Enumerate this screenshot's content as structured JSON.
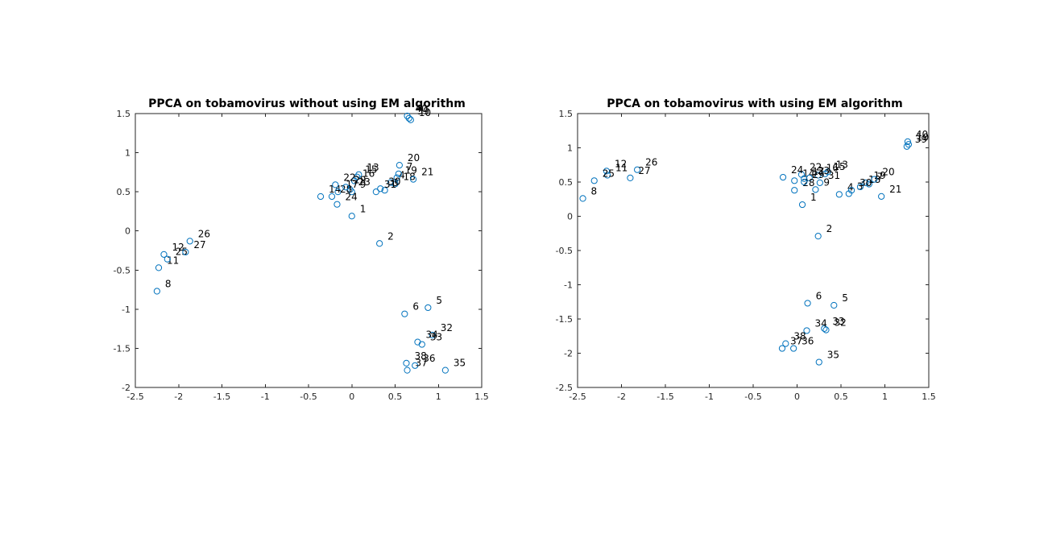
{
  "colors": {
    "marker": "#0072BD",
    "axis": "#262626",
    "text": "#000000",
    "background": "#ffffff"
  },
  "chart_data": [
    {
      "type": "scatter",
      "title": "PPCA on tobamovirus without using EM algorithm",
      "xlabel": "",
      "ylabel": "",
      "xlim": [
        -2.5,
        1.5
      ],
      "ylim": [
        -2,
        1.5
      ],
      "xticks": [
        -2.5,
        -2,
        -1.5,
        -1,
        -0.5,
        0,
        0.5,
        1,
        1.5
      ],
      "xtick_labels": [
        "-2.5",
        "-2",
        "-1.5",
        "-1",
        "-0.5",
        "0",
        "0.5",
        "1",
        "1.5"
      ],
      "yticks": [
        -2,
        -1.5,
        -1,
        -0.5,
        0,
        0.5,
        1,
        1.5
      ],
      "ytick_labels": [
        "-2",
        "-1.5",
        "-1",
        "-0.5",
        "0",
        "0.5",
        "1",
        "1.5"
      ],
      "grid": false,
      "marker": "circle-open",
      "points": [
        {
          "label": "1",
          "x": 0.0,
          "y": 0.19
        },
        {
          "label": "2",
          "x": 0.32,
          "y": -0.16
        },
        {
          "label": "3",
          "x": 0.38,
          "y": 0.52
        },
        {
          "label": "4",
          "x": 0.45,
          "y": 0.62
        },
        {
          "label": "5",
          "x": 0.88,
          "y": -0.98
        },
        {
          "label": "6",
          "x": 0.61,
          "y": -1.06
        },
        {
          "label": "7",
          "x": 0.54,
          "y": 0.73
        },
        {
          "label": "8",
          "x": -2.25,
          "y": -0.77
        },
        {
          "label": "9",
          "x": 0.0,
          "y": 0.5
        },
        {
          "label": "10",
          "x": 0.68,
          "y": 1.42
        },
        {
          "label": "11",
          "x": -2.23,
          "y": -0.47
        },
        {
          "label": "12",
          "x": -2.17,
          "y": -0.3
        },
        {
          "label": "13",
          "x": 0.08,
          "y": 0.72
        },
        {
          "label": "14",
          "x": -0.36,
          "y": 0.44
        },
        {
          "label": "15",
          "x": 0.06,
          "y": 0.69
        },
        {
          "label": "16",
          "x": 0.03,
          "y": 0.64
        },
        {
          "label": "17",
          "x": -0.16,
          "y": 0.5
        },
        {
          "label": "18",
          "x": 0.5,
          "y": 0.6
        },
        {
          "label": "19",
          "x": 0.52,
          "y": 0.68
        },
        {
          "label": "20",
          "x": 0.55,
          "y": 0.84
        },
        {
          "label": "21",
          "x": 0.71,
          "y": 0.66
        },
        {
          "label": "22",
          "x": -0.19,
          "y": 0.59
        },
        {
          "label": "23",
          "x": -0.02,
          "y": 0.53
        },
        {
          "label": "24",
          "x": -0.17,
          "y": 0.34
        },
        {
          "label": "25",
          "x": -2.13,
          "y": -0.36
        },
        {
          "label": "26",
          "x": -1.87,
          "y": -0.13
        },
        {
          "label": "27",
          "x": -1.92,
          "y": -0.27
        },
        {
          "label": "28",
          "x": -0.23,
          "y": 0.44
        },
        {
          "label": "29",
          "x": -0.07,
          "y": 0.56
        },
        {
          "label": "30",
          "x": 0.33,
          "y": 0.54
        },
        {
          "label": "31",
          "x": 0.28,
          "y": 0.5
        },
        {
          "label": "32",
          "x": 0.93,
          "y": -1.33
        },
        {
          "label": "33",
          "x": 0.81,
          "y": -1.45
        },
        {
          "label": "34",
          "x": 0.76,
          "y": -1.42
        },
        {
          "label": "35",
          "x": 1.08,
          "y": -1.78
        },
        {
          "label": "36",
          "x": 0.73,
          "y": -1.72
        },
        {
          "label": "37",
          "x": 0.64,
          "y": -1.78
        },
        {
          "label": "38",
          "x": 0.63,
          "y": -1.69
        },
        {
          "label": "39",
          "x": 0.66,
          "y": 1.44
        },
        {
          "label": "40",
          "x": 0.64,
          "y": 1.47
        }
      ]
    },
    {
      "type": "scatter",
      "title": "PPCA on tobamovirus with using EM algorithm",
      "xlabel": "",
      "ylabel": "",
      "xlim": [
        -2.5,
        1.5
      ],
      "ylim": [
        -2.5,
        1.5
      ],
      "xticks": [
        -2.5,
        -2,
        -1.5,
        -1,
        -0.5,
        0,
        0.5,
        1,
        1.5
      ],
      "xtick_labels": [
        "-2.5",
        "-2",
        "-1.5",
        "-1",
        "-0.5",
        "0",
        "0.5",
        "1",
        "1.5"
      ],
      "yticks": [
        -2.5,
        -2,
        -1.5,
        -1,
        -0.5,
        0,
        0.5,
        1,
        1.5
      ],
      "ytick_labels": [
        "-2.5",
        "-2",
        "-1.5",
        "-1",
        "-0.5",
        "0",
        "0.5",
        "1",
        "1.5"
      ],
      "grid": false,
      "marker": "circle-open",
      "points": [
        {
          "label": "1",
          "x": 0.06,
          "y": 0.17
        },
        {
          "label": "2",
          "x": 0.24,
          "y": -0.29
        },
        {
          "label": "3",
          "x": 0.59,
          "y": 0.33
        },
        {
          "label": "4",
          "x": 0.48,
          "y": 0.32
        },
        {
          "label": "5",
          "x": 0.42,
          "y": -1.3
        },
        {
          "label": "6",
          "x": 0.12,
          "y": -1.27
        },
        {
          "label": "7",
          "x": 0.82,
          "y": 0.47
        },
        {
          "label": "8",
          "x": -2.44,
          "y": 0.26
        },
        {
          "label": "9",
          "x": 0.21,
          "y": 0.39
        },
        {
          "label": "10",
          "x": 1.27,
          "y": 1.05
        },
        {
          "label": "11",
          "x": -2.16,
          "y": 0.6
        },
        {
          "label": "12",
          "x": -2.17,
          "y": 0.66
        },
        {
          "label": "13",
          "x": 0.35,
          "y": 0.65
        },
        {
          "label": "14",
          "x": -0.03,
          "y": 0.52
        },
        {
          "label": "15",
          "x": 0.32,
          "y": 0.62
        },
        {
          "label": "16",
          "x": 0.24,
          "y": 0.6
        },
        {
          "label": "17",
          "x": 0.08,
          "y": 0.55
        },
        {
          "label": "18",
          "x": 0.72,
          "y": 0.43
        },
        {
          "label": "19",
          "x": 0.78,
          "y": 0.49
        },
        {
          "label": "20",
          "x": 0.88,
          "y": 0.54
        },
        {
          "label": "21",
          "x": 0.96,
          "y": 0.29
        },
        {
          "label": "22",
          "x": 0.05,
          "y": 0.61
        },
        {
          "label": "23",
          "x": 0.14,
          "y": 0.56
        },
        {
          "label": "24",
          "x": -0.16,
          "y": 0.57
        },
        {
          "label": "25",
          "x": -2.31,
          "y": 0.52
        },
        {
          "label": "26",
          "x": -1.82,
          "y": 0.68
        },
        {
          "label": "27",
          "x": -1.9,
          "y": 0.56
        },
        {
          "label": "28",
          "x": -0.03,
          "y": 0.38
        },
        {
          "label": "29",
          "x": 0.08,
          "y": 0.5
        },
        {
          "label": "30",
          "x": 0.62,
          "y": 0.38
        },
        {
          "label": "31",
          "x": 0.26,
          "y": 0.49
        },
        {
          "label": "32",
          "x": 0.33,
          "y": -1.66
        },
        {
          "label": "33",
          "x": 0.31,
          "y": -1.64
        },
        {
          "label": "34",
          "x": 0.11,
          "y": -1.67
        },
        {
          "label": "35",
          "x": 0.25,
          "y": -2.13
        },
        {
          "label": "36",
          "x": -0.04,
          "y": -1.93
        },
        {
          "label": "37",
          "x": -0.17,
          "y": -1.93
        },
        {
          "label": "38",
          "x": -0.13,
          "y": -1.86
        },
        {
          "label": "39",
          "x": 1.25,
          "y": 1.02
        },
        {
          "label": "40",
          "x": 1.26,
          "y": 1.09
        }
      ]
    }
  ]
}
